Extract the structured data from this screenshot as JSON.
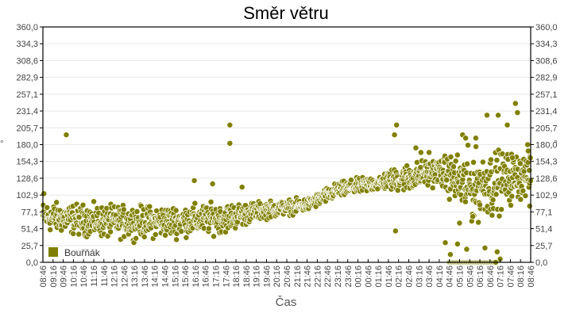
{
  "chart_data": {
    "type": "scatter",
    "title": "Směr větru",
    "xlabel": "Čas",
    "ylabel": "°",
    "ylabel_right": "°",
    "ylim": [
      0,
      360
    ],
    "yticks": [
      "0,0",
      "25,7",
      "51,4",
      "77,1",
      "102,9",
      "128,6",
      "154,3",
      "180,0",
      "205,7",
      "231,4",
      "257,1",
      "282,9",
      "308,6",
      "334,3",
      "360,0"
    ],
    "xticks": [
      "08:46",
      "09:16",
      "09:46",
      "10:16",
      "10:46",
      "11:16",
      "11:46",
      "12:16",
      "12:46",
      "13:16",
      "13:46",
      "14:16",
      "14:46",
      "15:16",
      "15:46",
      "16:16",
      "16:46",
      "17:16",
      "17:46",
      "18:16",
      "18:46",
      "19:16",
      "19:46",
      "20:16",
      "20:46",
      "21:16",
      "21:46",
      "22:16",
      "22:46",
      "23:16",
      "23:46",
      "00:16",
      "00:46",
      "01:16",
      "01:46",
      "02:16",
      "02:46",
      "03:16",
      "03:46",
      "04:16",
      "04:46",
      "05:16",
      "05:46",
      "06:16",
      "06:46",
      "07:16",
      "07:46",
      "08:16",
      "08:46"
    ],
    "grid": true,
    "legend_position": "bottom-left inside",
    "series": [
      {
        "name": "Bouřňák",
        "color": "#808000",
        "trend": [
          {
            "x_tick": 0,
            "center": 70,
            "spread": 22
          },
          {
            "x_tick": 6,
            "center": 62,
            "spread": 24
          },
          {
            "x_tick": 12,
            "center": 62,
            "spread": 24
          },
          {
            "x_tick": 18,
            "center": 68,
            "spread": 22
          },
          {
            "x_tick": 21,
            "center": 78,
            "spread": 14
          },
          {
            "x_tick": 26,
            "center": 88,
            "spread": 10
          },
          {
            "x_tick": 29,
            "center": 110,
            "spread": 12
          },
          {
            "x_tick": 33,
            "center": 122,
            "spread": 12
          },
          {
            "x_tick": 36,
            "center": 130,
            "spread": 22
          },
          {
            "x_tick": 39,
            "center": 140,
            "spread": 20
          },
          {
            "x_tick": 42,
            "center": 115,
            "spread": 55
          },
          {
            "x_tick": 45,
            "center": 125,
            "spread": 45
          },
          {
            "x_tick": 48,
            "center": 135,
            "spread": 30
          }
        ],
        "outliers": [
          {
            "x_tick": 2.3,
            "y": 195
          },
          {
            "x_tick": 18.4,
            "y": 210
          },
          {
            "x_tick": 18.4,
            "y": 182
          },
          {
            "x_tick": 19.6,
            "y": 115
          },
          {
            "x_tick": 14.9,
            "y": 125
          },
          {
            "x_tick": 16.7,
            "y": 120
          },
          {
            "x_tick": 0.1,
            "y": 105
          },
          {
            "x_tick": 34.6,
            "y": 195
          },
          {
            "x_tick": 34.8,
            "y": 210
          },
          {
            "x_tick": 34.7,
            "y": 48
          },
          {
            "x_tick": 38.0,
            "y": 168
          },
          {
            "x_tick": 37.2,
            "y": 168
          },
          {
            "x_tick": 36.7,
            "y": 175
          },
          {
            "x_tick": 41.3,
            "y": 195
          },
          {
            "x_tick": 41.6,
            "y": 190
          },
          {
            "x_tick": 42.6,
            "y": 190
          },
          {
            "x_tick": 43.7,
            "y": 225
          },
          {
            "x_tick": 44.8,
            "y": 225
          },
          {
            "x_tick": 45.7,
            "y": 210
          },
          {
            "x_tick": 46.5,
            "y": 243
          },
          {
            "x_tick": 46.7,
            "y": 229
          },
          {
            "x_tick": 46.2,
            "y": 160
          },
          {
            "x_tick": 47.7,
            "y": 180
          },
          {
            "x_tick": 47.9,
            "y": 86
          },
          {
            "x_tick": 39.6,
            "y": 30
          },
          {
            "x_tick": 40.1,
            "y": 12
          },
          {
            "x_tick": 40.8,
            "y": 28
          },
          {
            "x_tick": 41.7,
            "y": 20
          },
          {
            "x_tick": 43.5,
            "y": 22
          },
          {
            "x_tick": 44.7,
            "y": 16
          },
          {
            "x_tick": 45.0,
            "y": 5
          },
          {
            "x_tick": 42.3,
            "y": 70
          },
          {
            "x_tick": 43.0,
            "y": 88
          },
          {
            "x_tick": 41.0,
            "y": 60
          },
          {
            "x_tick": 44.2,
            "y": 72
          }
        ],
        "zero_cluster": {
          "x_tick_from": 40.0,
          "x_tick_to": 44.6,
          "y": 0
        }
      }
    ]
  },
  "legend": {
    "label": "Bouřňák",
    "color": "#808000"
  },
  "title": "Směr větru",
  "xlabel": "Čas",
  "unit": "°"
}
